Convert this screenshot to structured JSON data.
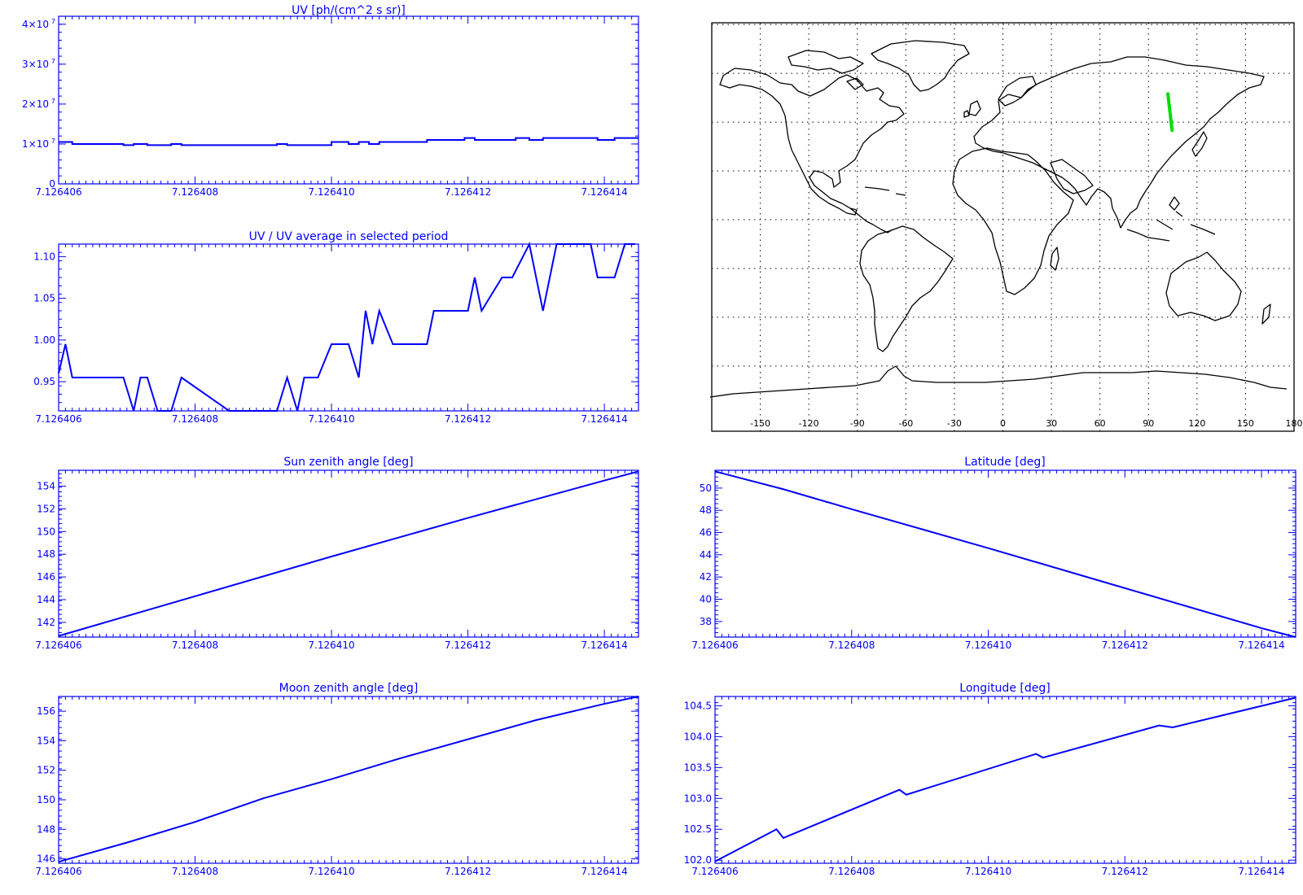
{
  "page": {
    "accent_color": "#0000ff",
    "track_color": "#00dd00",
    "frame_color": "#000000"
  },
  "map": {
    "lon_ticks": [
      "-150",
      "-120",
      "-90",
      "-60",
      "-30",
      "0",
      "30",
      "60",
      "90",
      "120",
      "150",
      "180"
    ],
    "track": {
      "lon": [
        104.6,
        102.0
      ],
      "lat": [
        36.6,
        51.6
      ]
    }
  },
  "chart_data": [
    {
      "id": "uv",
      "type": "line",
      "step": true,
      "title": "UV [ph/(cm^2 s sr)]",
      "xlim": [
        7.126406,
        7.1264145
      ],
      "ylim": [
        0,
        42000000
      ],
      "x_ticks": [
        "7.126406",
        "7.126408",
        "7.126410",
        "7.126412",
        "7.126414"
      ],
      "y_ticks": [
        {
          "value": 0,
          "label": "0"
        },
        {
          "value": 10000000,
          "label": "1×10",
          "exp": "7"
        },
        {
          "value": 20000000,
          "label": "2×10",
          "exp": "7"
        },
        {
          "value": 30000000,
          "label": "3×10",
          "exp": "7"
        },
        {
          "value": 40000000,
          "label": "4×10",
          "exp": "7"
        }
      ],
      "x": [
        7.126406,
        7.1264062,
        7.12640695,
        7.1264071,
        7.1264073,
        7.12640765,
        7.1264078,
        7.1264092,
        7.12640935,
        7.12641,
        7.12641025,
        7.1264104,
        7.12641055,
        7.1264107,
        7.1264109,
        7.1264114,
        7.12641195,
        7.1264121,
        7.1264127,
        7.1264129,
        7.1264131,
        7.1264139,
        7.12641415,
        7.1264143
      ],
      "y": [
        10500000,
        10000000,
        9700000,
        10000000,
        9700000,
        10000000,
        9700000,
        10000000,
        9700000,
        10500000,
        10000000,
        10500000,
        10000000,
        10500000,
        10500000,
        11000000,
        11500000,
        11000000,
        11500000,
        11000000,
        11500000,
        11000000,
        11500000,
        11500000
      ]
    },
    {
      "id": "ratio",
      "type": "line",
      "title": "UV / UV average in selected period",
      "xlim": [
        7.126406,
        7.1264145
      ],
      "ylim": [
        0.915,
        1.115
      ],
      "x_ticks": [
        "7.126406",
        "7.126408",
        "7.126410",
        "7.126412",
        "7.126414"
      ],
      "y_ticks": [
        {
          "value": 0.95,
          "label": "0.95"
        },
        {
          "value": 1.0,
          "label": "1.00"
        },
        {
          "value": 1.05,
          "label": "1.05"
        },
        {
          "value": 1.1,
          "label": "1.10"
        }
      ],
      "x": [
        7.126406,
        7.1264061,
        7.1264062,
        7.1264069,
        7.12640695,
        7.1264071,
        7.1264072,
        7.1264073,
        7.12640745,
        7.12640765,
        7.1264078,
        7.1264085,
        7.1264091,
        7.1264092,
        7.12640935,
        7.1264095,
        7.1264096,
        7.1264098,
        7.12641,
        7.12641015,
        7.12641025,
        7.1264104,
        7.1264105,
        7.1264106,
        7.1264107,
        7.1264109,
        7.126411,
        7.1264114,
        7.1264115,
        7.1264118,
        7.126412,
        7.1264121,
        7.1264122,
        7.1264125,
        7.12641265,
        7.1264129,
        7.1264131,
        7.1264133,
        7.1264136,
        7.1264138,
        7.1264139,
        7.12641415,
        7.1264143,
        7.12641445
      ],
      "y": [
        0.96,
        0.995,
        0.955,
        0.955,
        0.955,
        0.915,
        0.955,
        0.955,
        0.915,
        0.915,
        0.955,
        0.915,
        0.915,
        0.915,
        0.955,
        0.915,
        0.955,
        0.955,
        0.995,
        0.995,
        0.995,
        0.955,
        1.035,
        0.995,
        1.035,
        0.995,
        0.995,
        0.995,
        1.035,
        1.035,
        1.035,
        1.075,
        1.035,
        1.075,
        1.075,
        1.115,
        1.035,
        1.115,
        1.115,
        1.115,
        1.075,
        1.075,
        1.115,
        1.115
      ]
    },
    {
      "id": "sun",
      "type": "line",
      "title": "Sun zenith angle [deg]",
      "xlim": [
        7.126406,
        7.1264145
      ],
      "ylim": [
        140.7,
        155.4
      ],
      "x_ticks": [
        "7.126406",
        "7.126408",
        "7.126410",
        "7.126412",
        "7.126414"
      ],
      "y_ticks": [
        {
          "value": 142,
          "label": "142"
        },
        {
          "value": 144,
          "label": "144"
        },
        {
          "value": 146,
          "label": "146"
        },
        {
          "value": 148,
          "label": "148"
        },
        {
          "value": 150,
          "label": "150"
        },
        {
          "value": 152,
          "label": "152"
        },
        {
          "value": 154,
          "label": "154"
        }
      ],
      "x": [
        7.126406,
        7.126408,
        7.12641,
        7.126412,
        7.126414,
        7.1264145
      ],
      "y": [
        140.8,
        144.3,
        147.8,
        151.2,
        154.5,
        155.3
      ]
    },
    {
      "id": "latitude",
      "type": "line",
      "title": "Latitude [deg]",
      "xlim": [
        7.126406,
        7.1264145
      ],
      "ylim": [
        36.6,
        51.6
      ],
      "x_ticks": [
        "7.126406",
        "7.126408",
        "7.126410",
        "7.126412",
        "7.126414"
      ],
      "y_ticks": [
        {
          "value": 38,
          "label": "38"
        },
        {
          "value": 40,
          "label": "40"
        },
        {
          "value": 42,
          "label": "42"
        },
        {
          "value": 44,
          "label": "44"
        },
        {
          "value": 46,
          "label": "46"
        },
        {
          "value": 48,
          "label": "48"
        },
        {
          "value": 50,
          "label": "50"
        }
      ],
      "x": [
        7.126406,
        7.126407,
        7.126408,
        7.12641,
        7.126412,
        7.126414,
        7.1264145
      ],
      "y": [
        51.5,
        49.9,
        48.1,
        44.6,
        41.0,
        37.4,
        36.6
      ]
    },
    {
      "id": "moon",
      "type": "line",
      "title": "Moon zenith angle [deg]",
      "xlim": [
        7.126406,
        7.1264145
      ],
      "ylim": [
        145.7,
        157.0
      ],
      "x_ticks": [
        "7.126406",
        "7.126408",
        "7.126410",
        "7.126412",
        "7.126414"
      ],
      "y_ticks": [
        {
          "value": 146,
          "label": "146"
        },
        {
          "value": 148,
          "label": "148"
        },
        {
          "value": 150,
          "label": "150"
        },
        {
          "value": 152,
          "label": "152"
        },
        {
          "value": 154,
          "label": "154"
        },
        {
          "value": 156,
          "label": "156"
        }
      ],
      "x": [
        7.126406,
        7.126407,
        7.126408,
        7.126409,
        7.12641,
        7.126411,
        7.126412,
        7.126413,
        7.126414,
        7.1264145
      ],
      "y": [
        145.8,
        147.1,
        148.5,
        150.1,
        151.4,
        152.8,
        154.1,
        155.4,
        156.5,
        157.0
      ]
    },
    {
      "id": "longitude",
      "type": "line",
      "title": "Longitude [deg]",
      "xlim": [
        7.126406,
        7.1264145
      ],
      "ylim": [
        101.95,
        104.65
      ],
      "x_ticks": [
        "7.126406",
        "7.126408",
        "7.126410",
        "7.126412",
        "7.126414"
      ],
      "y_ticks": [
        {
          "value": 102.0,
          "label": "102.0"
        },
        {
          "value": 102.5,
          "label": "102.5"
        },
        {
          "value": 103.0,
          "label": "103.0"
        },
        {
          "value": 103.5,
          "label": "103.5"
        },
        {
          "value": 104.0,
          "label": "104.0"
        },
        {
          "value": 104.5,
          "label": "104.5"
        }
      ],
      "x": [
        7.126406,
        7.1264069,
        7.126407,
        7.1264087,
        7.1264088,
        7.1264107,
        7.1264108,
        7.1264125,
        7.1264127,
        7.1264145
      ],
      "y": [
        101.98,
        102.5,
        102.36,
        103.14,
        103.06,
        103.72,
        103.66,
        104.18,
        104.15,
        104.63
      ]
    }
  ]
}
